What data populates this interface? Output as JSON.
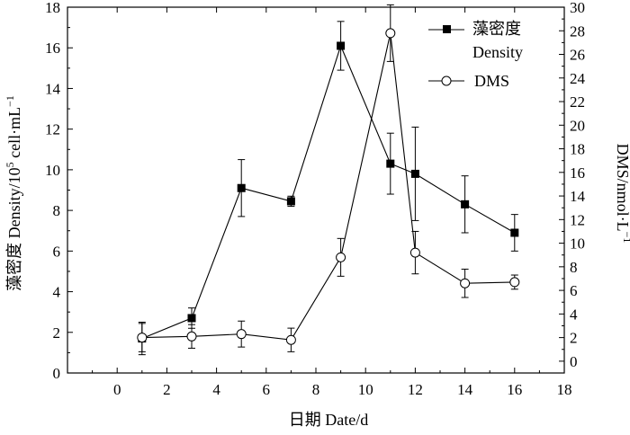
{
  "chart_data": {
    "type": "line",
    "xlabel": "日期 Date/d",
    "ylabel_left_prefix": "藻密度 Density/10",
    "ylabel_left_exp": "5",
    "ylabel_left_suffix": " cell·mL",
    "ylabel_left_unit_exp": "−1",
    "ylabel_right": "DMS/nmol·L",
    "ylabel_right_exp": "−1",
    "xlim": [
      -2,
      18
    ],
    "ylim_left": [
      0,
      18
    ],
    "ylim_right": [
      -1,
      30
    ],
    "x_ticks": [
      0,
      2,
      4,
      6,
      8,
      10,
      12,
      14,
      16,
      18
    ],
    "y_left_ticks": [
      0,
      2,
      4,
      6,
      8,
      10,
      12,
      14,
      16,
      18
    ],
    "y_right_ticks": [
      0,
      2,
      4,
      6,
      8,
      10,
      12,
      14,
      16,
      18,
      20,
      22,
      24,
      26,
      28,
      30
    ],
    "legend_position": "top-right",
    "series": [
      {
        "name": "藻密度",
        "name_line2": "Density",
        "axis": "left",
        "marker": "filled-square",
        "x": [
          1,
          3,
          5,
          7,
          9,
          11,
          12,
          14,
          16
        ],
        "y": [
          1.7,
          2.7,
          9.1,
          8.45,
          16.1,
          10.3,
          9.8,
          8.3,
          6.9
        ],
        "err": [
          0.8,
          0.5,
          1.4,
          0.25,
          1.2,
          1.5,
          2.3,
          1.4,
          0.9
        ]
      },
      {
        "name": "DMS",
        "axis": "right",
        "marker": "open-circle",
        "x": [
          1,
          3,
          5,
          7,
          9,
          11,
          12,
          14,
          16
        ],
        "y": [
          2.0,
          2.1,
          2.3,
          1.8,
          8.8,
          27.8,
          9.2,
          6.6,
          6.7
        ],
        "err": [
          1.2,
          1.0,
          1.1,
          1.0,
          1.6,
          2.4,
          1.8,
          1.2,
          0.6
        ]
      }
    ]
  }
}
